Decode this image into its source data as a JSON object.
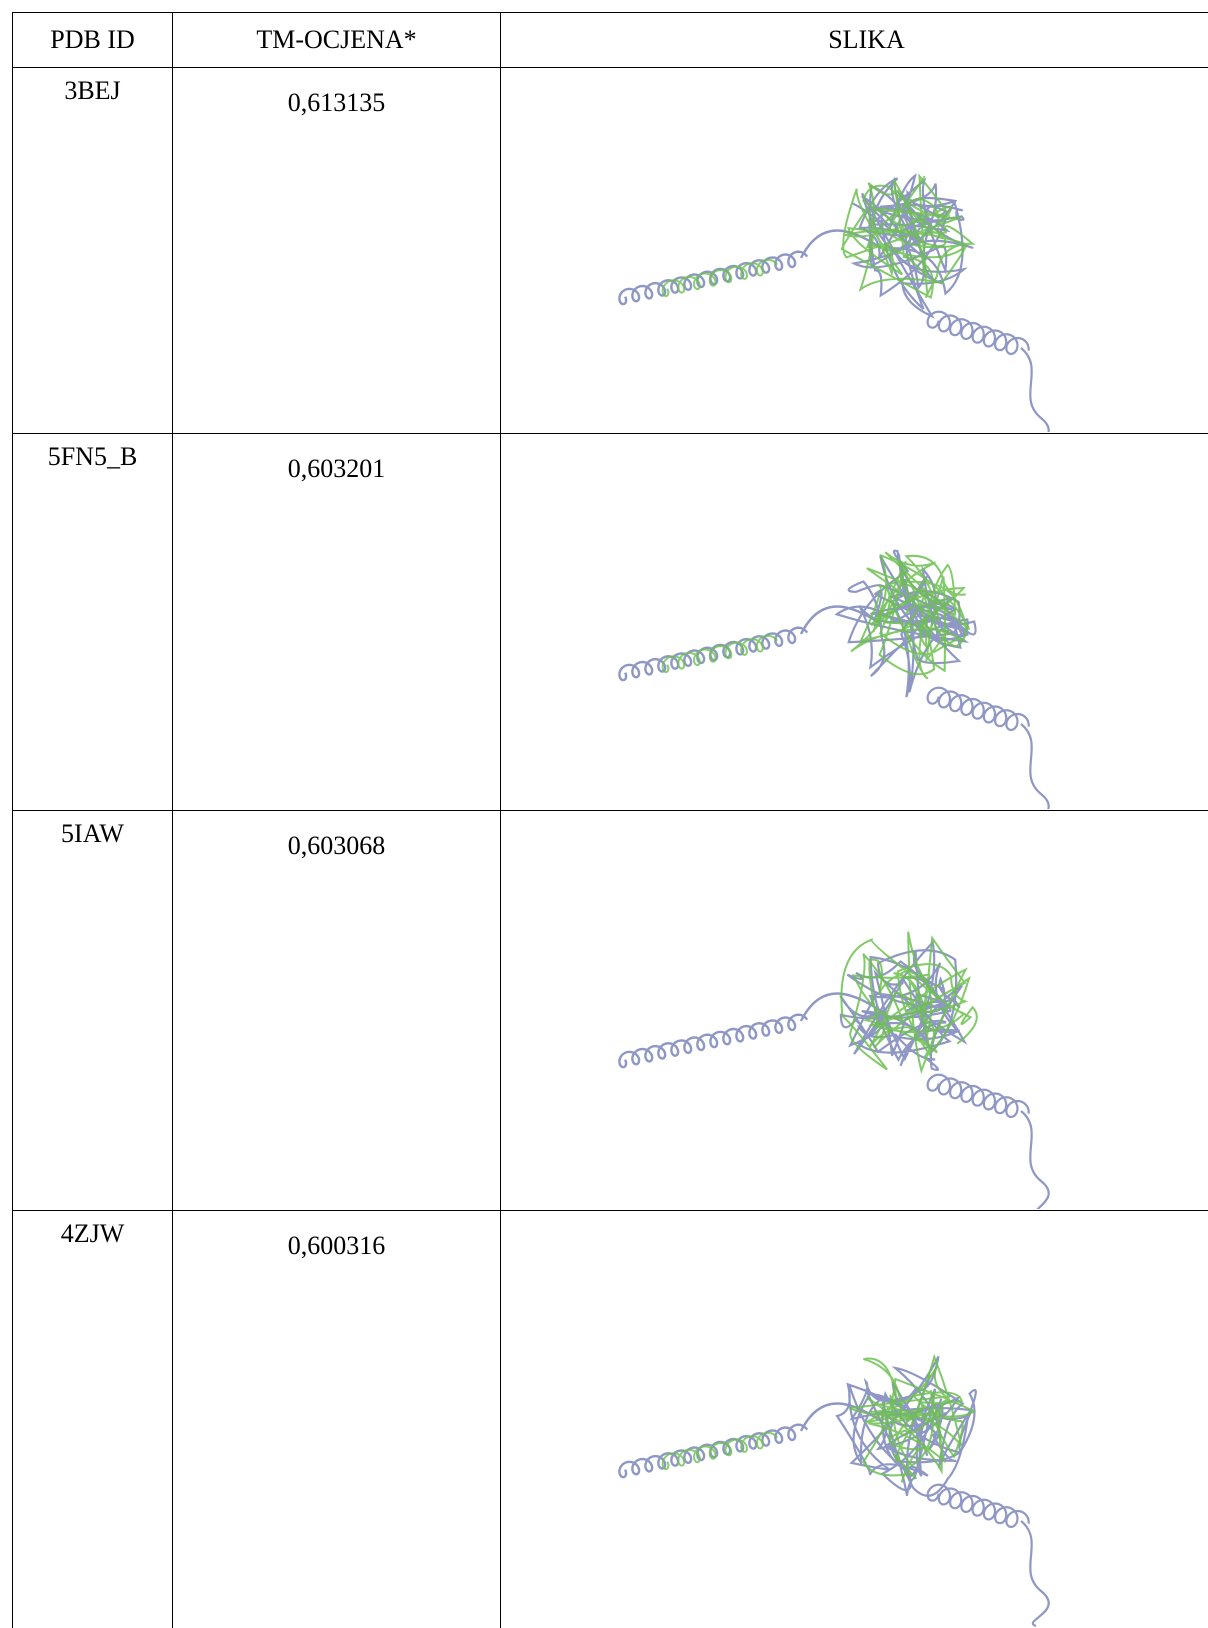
{
  "table": {
    "headers": [
      "PDB ID",
      "TM-OCJENA*",
      "SLIKA"
    ],
    "rows": [
      [
        "3BEJ",
        "0,613135"
      ],
      [
        "5FN5_B",
        "0,603201"
      ],
      [
        "5IAW",
        "0,603068"
      ],
      [
        "4ZJW",
        "0,600316"
      ]
    ]
  }
}
